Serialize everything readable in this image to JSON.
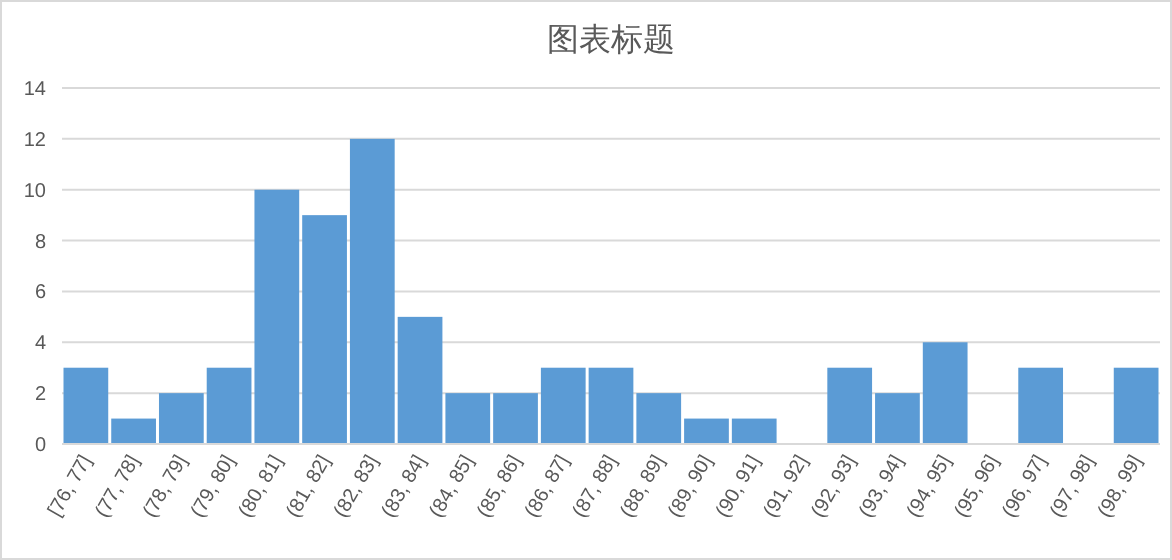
{
  "chart_data": {
    "type": "bar",
    "title": "图表标题",
    "categories": [
      "[76, 77]",
      "(77, 78]",
      "(78, 79]",
      "(79, 80]",
      "(80, 81]",
      "(81, 82]",
      "(82, 83]",
      "(83, 84]",
      "(84, 85]",
      "(85, 86]",
      "(86, 87]",
      "(87, 88]",
      "(88, 89]",
      "(89, 90]",
      "(90, 91]",
      "(91, 92]",
      "(92, 93]",
      "(93, 94]",
      "(94, 95]",
      "(95, 96]",
      "(96, 97]",
      "(97, 98]",
      "(98, 99]"
    ],
    "values": [
      3,
      1,
      2,
      3,
      10,
      9,
      12,
      5,
      2,
      2,
      3,
      3,
      2,
      1,
      1,
      0,
      3,
      2,
      4,
      0,
      3,
      0,
      3
    ],
    "color": "#5b9bd5",
    "ylim": [
      0,
      14
    ],
    "yticks": [
      0,
      2,
      4,
      6,
      8,
      10,
      12,
      14
    ],
    "grid": "y"
  }
}
